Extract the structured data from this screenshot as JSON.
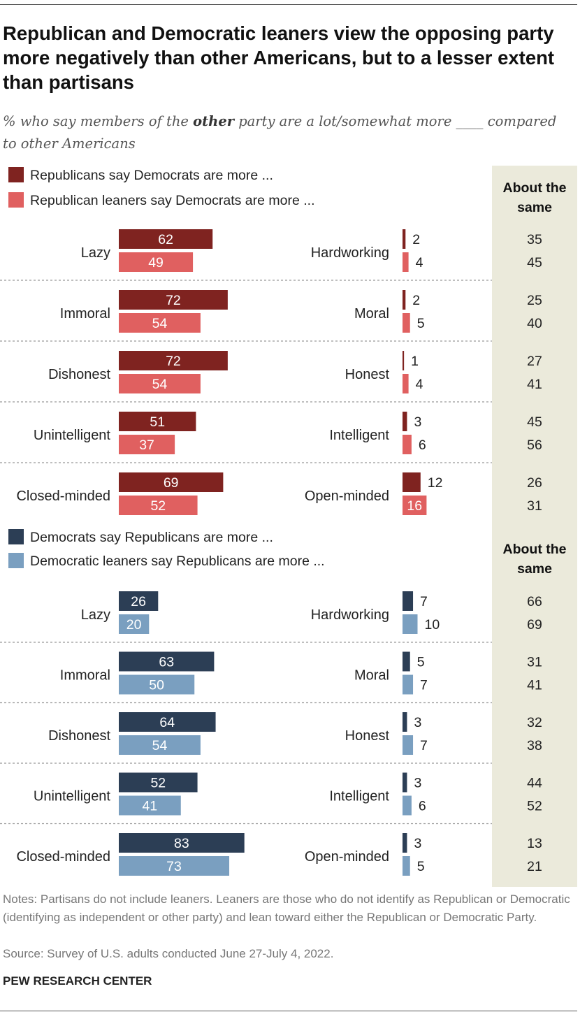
{
  "title": "Republican and Democratic leaners view the opposing party more negatively than other Americans, but to a lesser extent than partisans",
  "subtitle": {
    "before": "% who say members of the ",
    "emphasis": "other",
    "after": " party are a lot/somewhat more ____ compared to other Americans"
  },
  "same_header": "About the same",
  "chart_data": [
    {
      "type": "bar",
      "series": [
        {
          "name": "Republicans say Democrats are more ...",
          "color": "#7f2320"
        },
        {
          "name": "Republican leaners say Democrats are more ...",
          "color": "#e06060"
        }
      ],
      "rows": [
        {
          "left": "Lazy",
          "right": "Hardworking",
          "left_values": [
            62,
            49
          ],
          "right_values": [
            2,
            4
          ],
          "same": [
            35,
            45
          ]
        },
        {
          "left": "Immoral",
          "right": "Moral",
          "left_values": [
            72,
            54
          ],
          "right_values": [
            2,
            5
          ],
          "same": [
            25,
            40
          ]
        },
        {
          "left": "Dishonest",
          "right": "Honest",
          "left_values": [
            72,
            54
          ],
          "right_values": [
            1,
            4
          ],
          "same": [
            27,
            41
          ]
        },
        {
          "left": "Unintelligent",
          "right": "Intelligent",
          "left_values": [
            51,
            37
          ],
          "right_values": [
            3,
            6
          ],
          "same": [
            45,
            56
          ]
        },
        {
          "left": "Closed-minded",
          "right": "Open-minded",
          "left_values": [
            69,
            52
          ],
          "right_values": [
            12,
            16
          ],
          "same": [
            26,
            31
          ]
        }
      ]
    },
    {
      "type": "bar",
      "series": [
        {
          "name": "Democrats say Republicans are more ...",
          "color": "#2c3e55"
        },
        {
          "name": "Democratic leaners say Republicans are more ...",
          "color": "#7a9fc0"
        }
      ],
      "rows": [
        {
          "left": "Lazy",
          "right": "Hardworking",
          "left_values": [
            26,
            20
          ],
          "right_values": [
            7,
            10
          ],
          "same": [
            66,
            69
          ]
        },
        {
          "left": "Immoral",
          "right": "Moral",
          "left_values": [
            63,
            50
          ],
          "right_values": [
            5,
            7
          ],
          "same": [
            31,
            41
          ]
        },
        {
          "left": "Dishonest",
          "right": "Honest",
          "left_values": [
            64,
            54
          ],
          "right_values": [
            3,
            7
          ],
          "same": [
            32,
            38
          ]
        },
        {
          "left": "Unintelligent",
          "right": "Intelligent",
          "left_values": [
            52,
            41
          ],
          "right_values": [
            3,
            6
          ],
          "same": [
            44,
            52
          ]
        },
        {
          "left": "Closed-minded",
          "right": "Open-minded",
          "left_values": [
            83,
            73
          ],
          "right_values": [
            3,
            5
          ],
          "same": [
            13,
            21
          ]
        }
      ]
    }
  ],
  "notes": "Notes: Partisans do not include leaners. Leaners are those who do not identify as Republican or Democratic (identifying as independent or other party) and lean toward either the Republican or Democratic Party.",
  "source": "Source: Survey of U.S. adults conducted June 27-July 4, 2022.",
  "organization": "PEW RESEARCH CENTER",
  "colors": {
    "same_column_bg": "#ebeadb",
    "divider": "#999999"
  }
}
